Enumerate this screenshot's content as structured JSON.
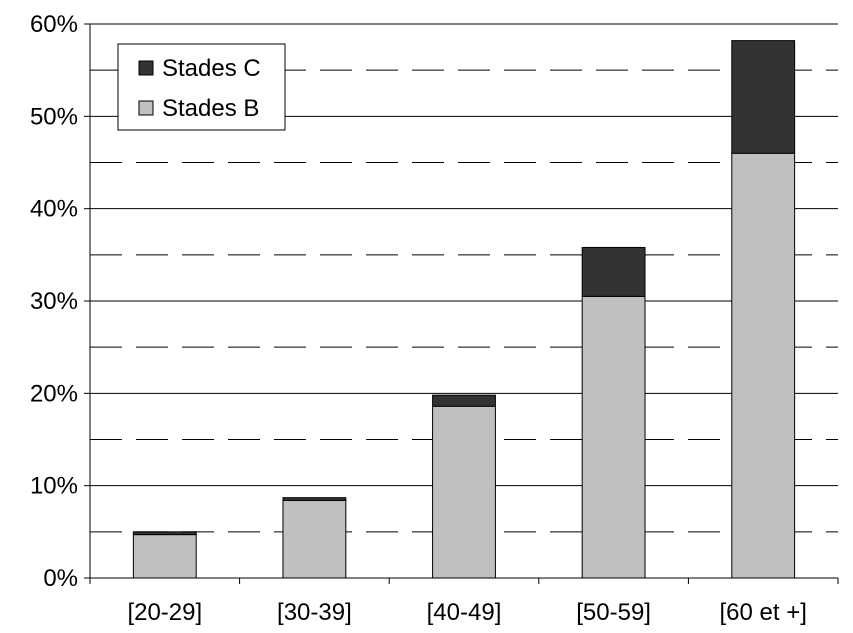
{
  "chart_data": {
    "type": "bar",
    "stacked": true,
    "categories": [
      "[20-29]",
      "[30-39]",
      "[40-49]",
      "[50-59]",
      "[60 et +]"
    ],
    "series": [
      {
        "name": "Stades B",
        "values": [
          4.7,
          8.4,
          18.6,
          30.5,
          46.0
        ],
        "color": "#c0c0c0"
      },
      {
        "name": "Stades C",
        "values": [
          0.3,
          0.3,
          1.2,
          5.3,
          12.2
        ],
        "color": "#333333"
      }
    ],
    "y_ticks": [
      "0%",
      "10%",
      "20%",
      "30%",
      "40%",
      "50%",
      "60%"
    ],
    "ylim": [
      0,
      60
    ],
    "y_unit": "%",
    "grid": {
      "major": "solid",
      "minor": "dashed"
    },
    "legend": {
      "position": "top-left",
      "entries": [
        "Stades C",
        "Stades B"
      ]
    },
    "title": "",
    "xlabel": "",
    "ylabel": ""
  }
}
